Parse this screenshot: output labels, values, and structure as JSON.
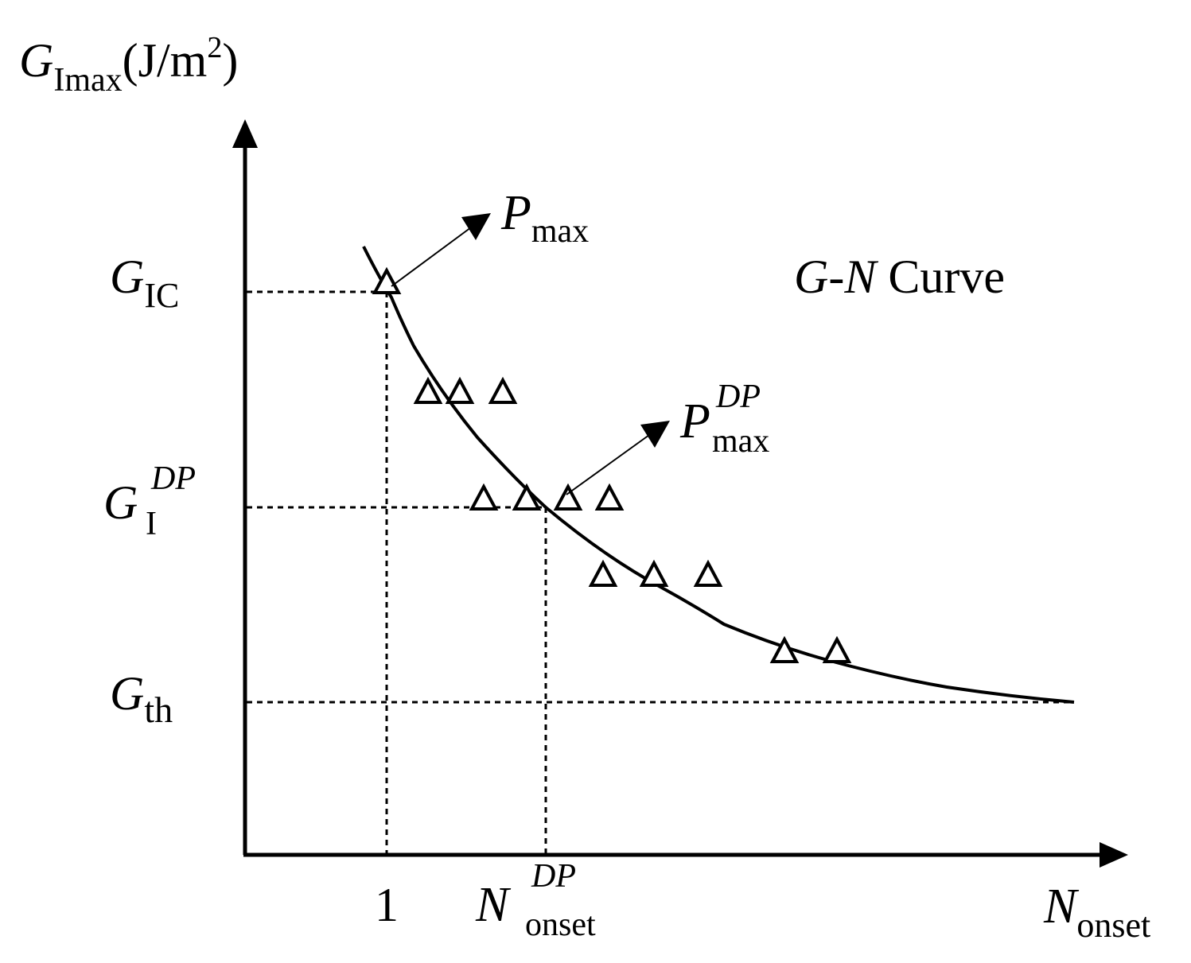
{
  "axes": {
    "y_title": {
      "main": "G",
      "sub": "Imax",
      "rest": "(J/m",
      "sup": "2",
      "close": ")"
    },
    "x_title": {
      "main": "N",
      "sub": "onset"
    }
  },
  "y_labels": {
    "gic": {
      "main": "G",
      "sub": "IC"
    },
    "gdp": {
      "main": "G",
      "sub": "I",
      "sup": "DP"
    },
    "gth": {
      "main": "G",
      "sub": "th"
    }
  },
  "x_labels": {
    "one": "1",
    "ndp": {
      "main": "N",
      "sub": "onset",
      "sup": "DP"
    }
  },
  "annotations": {
    "pmax": {
      "main": "P",
      "sub": "max"
    },
    "pmax_dp": {
      "main": "P",
      "sub": "max",
      "sup": "DP"
    },
    "curve_title": {
      "g": "G",
      "dash": "-",
      "n": "N",
      "rest": " Curve"
    }
  }
}
